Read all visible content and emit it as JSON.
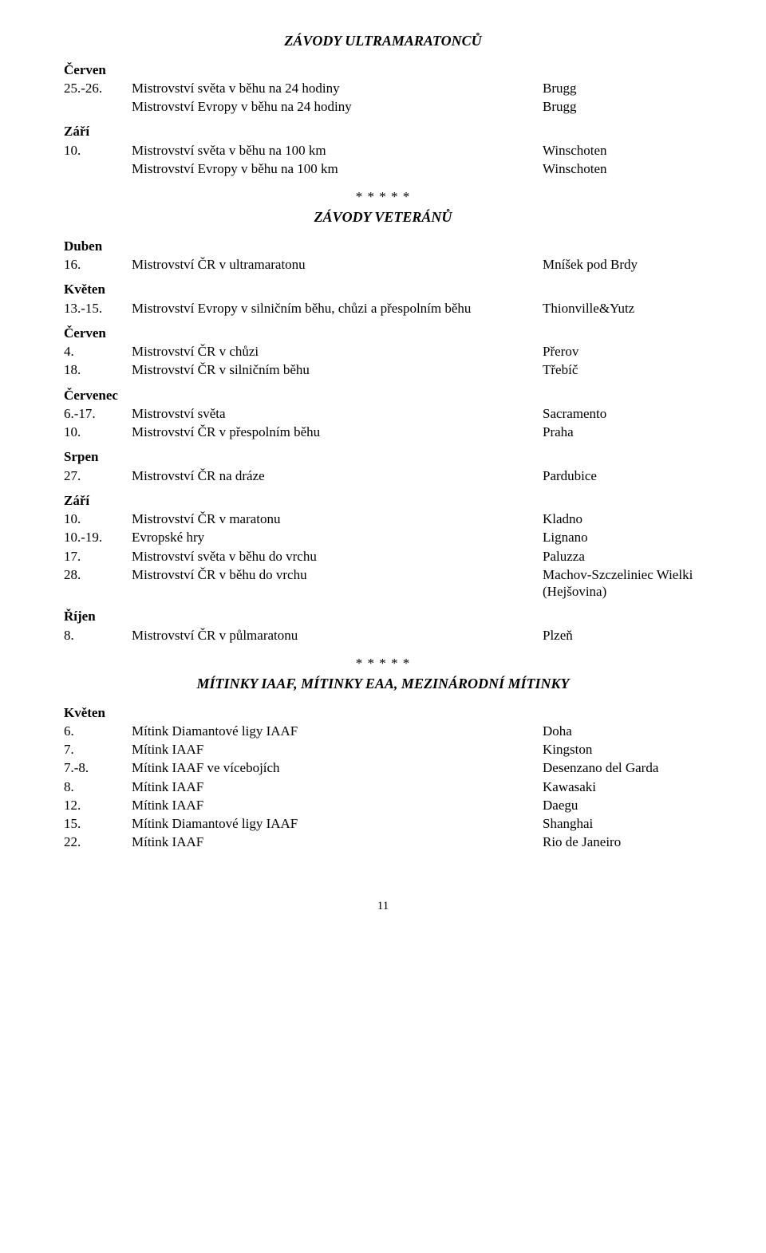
{
  "sections": [
    {
      "heading": "ZÁVODY ULTRAMARATONCŮ",
      "months": [
        {
          "name": "Červen",
          "rows": [
            {
              "date": "25.-26.",
              "desc": "Mistrovství světa v běhu na 24 hodiny",
              "loc": "Brugg"
            },
            {
              "date": "",
              "desc": "Mistrovství Evropy v běhu na 24 hodiny",
              "loc": "Brugg"
            }
          ]
        },
        {
          "name": "Září",
          "rows": [
            {
              "date": "10.",
              "desc": "Mistrovství světa v běhu na 100 km",
              "loc": "Winschoten"
            },
            {
              "date": "",
              "desc": "Mistrovství Evropy v běhu na 100 km",
              "loc": "Winschoten"
            }
          ]
        }
      ]
    },
    {
      "separator": "* * * * *",
      "heading": "ZÁVODY VETERÁNŮ",
      "months": [
        {
          "name": "Duben",
          "rows": [
            {
              "date": "16.",
              "desc": "Mistrovství ČR v ultramaratonu",
              "loc": "Mníšek pod Brdy"
            }
          ]
        },
        {
          "name": "Květen",
          "rows": [
            {
              "date": "13.-15.",
              "desc": "Mistrovství Evropy v silničním běhu, chůzi a přespolním běhu",
              "loc": "Thionville&Yutz"
            }
          ]
        },
        {
          "name": "Červen",
          "rows": [
            {
              "date": "4.",
              "desc": "Mistrovství ČR v chůzi",
              "loc": "Přerov"
            },
            {
              "date": "18.",
              "desc": "Mistrovství ČR v silničním běhu",
              "loc": "Třebíč"
            }
          ]
        },
        {
          "name": "Červenec",
          "rows": [
            {
              "date": "6.-17.",
              "desc": "Mistrovství světa",
              "loc": "Sacramento"
            },
            {
              "date": "10.",
              "desc": "Mistrovství ČR v přespolním běhu",
              "loc": "Praha"
            }
          ]
        },
        {
          "name": "Srpen",
          "rows": [
            {
              "date": "27.",
              "desc": "Mistrovství ČR na dráze",
              "loc": "Pardubice"
            }
          ]
        },
        {
          "name": "Září",
          "rows": [
            {
              "date": "10.",
              "desc": "Mistrovství ČR v maratonu",
              "loc": "Kladno"
            },
            {
              "date": "10.-19.",
              "desc": "Evropské hry",
              "loc": "Lignano"
            },
            {
              "date": "17.",
              "desc": "Mistrovství světa v běhu do vrchu",
              "loc": "Paluzza"
            },
            {
              "date": "28.",
              "desc": "Mistrovství ČR v běhu do vrchu",
              "loc": "Machov-Szczeliniec Wielki (Hejšovina)"
            }
          ]
        },
        {
          "name": "Říjen",
          "rows": [
            {
              "date": "8.",
              "desc": "Mistrovství ČR v půlmaratonu",
              "loc": "Plzeň"
            }
          ]
        }
      ]
    },
    {
      "separator": "* * * * *",
      "heading": "MÍTINKY IAAF, MÍTINKY EAA, MEZINÁRODNÍ MÍTINKY",
      "months": [
        {
          "name": "Květen",
          "rows": [
            {
              "date": "6.",
              "desc": "Mítink Diamantové ligy IAAF",
              "loc": "Doha"
            },
            {
              "date": "7.",
              "desc": "Mítink IAAF",
              "loc": "Kingston"
            },
            {
              "date": "7.-8.",
              "desc": "Mítink IAAF ve vícebojích",
              "loc": "Desenzano del Garda"
            },
            {
              "date": "8.",
              "desc": "Mítink IAAF",
              "loc": "Kawasaki"
            },
            {
              "date": "12.",
              "desc": "Mítink IAAF",
              "loc": "Daegu"
            },
            {
              "date": "15.",
              "desc": "Mítink Diamantové ligy IAAF",
              "loc": "Shanghai"
            },
            {
              "date": "22.",
              "desc": "Mítink IAAF",
              "loc": "Rio de Janeiro"
            }
          ]
        }
      ]
    }
  ],
  "pagenum": "11"
}
